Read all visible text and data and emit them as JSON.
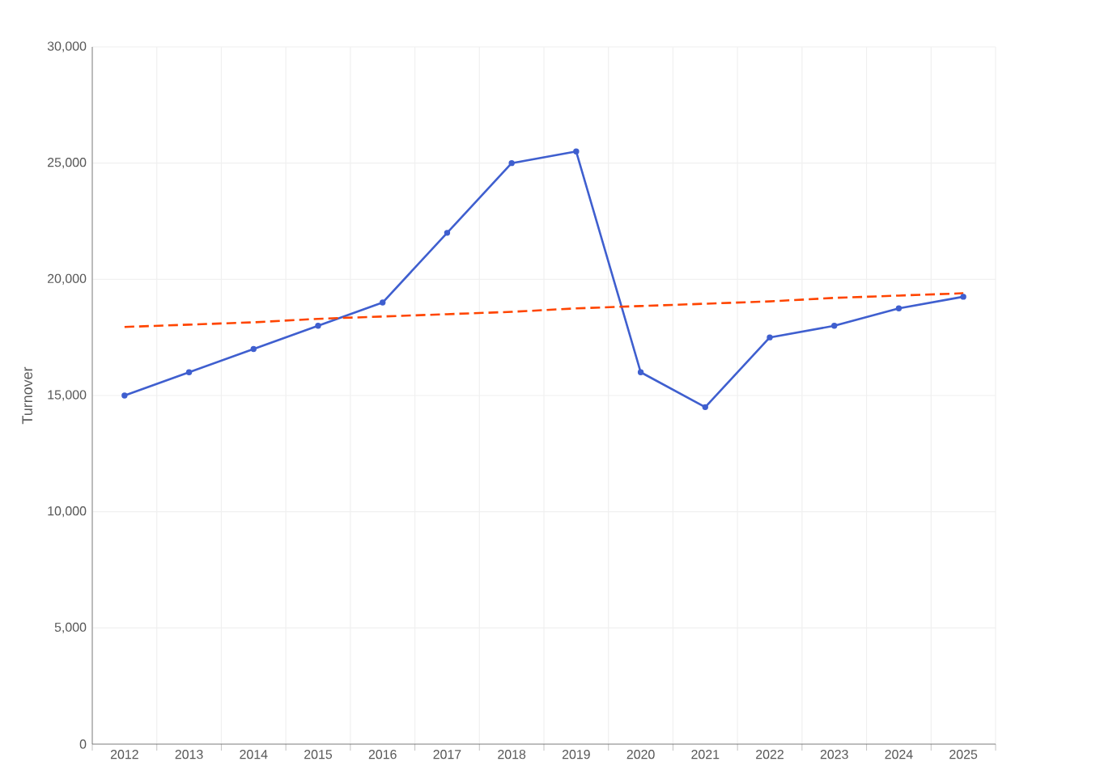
{
  "chart_data": {
    "type": "line",
    "ylabel": "Turnover",
    "categories": [
      "2012",
      "2013",
      "2014",
      "2015",
      "2016",
      "2017",
      "2018",
      "2019",
      "2020",
      "2021",
      "2022",
      "2023",
      "2024",
      "2025"
    ],
    "series": [
      {
        "color": "#3f5fcf",
        "marker": "circle",
        "line_style": "solid",
        "values": [
          15000,
          16000,
          17000,
          18000,
          19000,
          22000,
          25000,
          25500,
          16000,
          14500,
          17500,
          18000,
          18750,
          19250
        ]
      },
      {
        "type": "line",
        "color": "#ff4500",
        "marker": "none",
        "line_style": "dashed",
        "values": [
          17950,
          18050,
          18150,
          18300,
          18400,
          18500,
          18600,
          18750,
          18850,
          18950,
          19050,
          19200,
          19300,
          19400
        ]
      }
    ],
    "ylim": [
      0,
      30000
    ],
    "yticks": [
      {
        "value": 0,
        "label": "0"
      },
      {
        "value": 5000,
        "label": "5,000"
      },
      {
        "value": 10000,
        "label": "10,000"
      },
      {
        "value": 15000,
        "label": "15,000"
      },
      {
        "value": 20000,
        "label": "20,000"
      },
      {
        "value": 25000,
        "label": "25,000"
      },
      {
        "value": 30000,
        "label": "30,000"
      }
    ],
    "grid": true
  }
}
